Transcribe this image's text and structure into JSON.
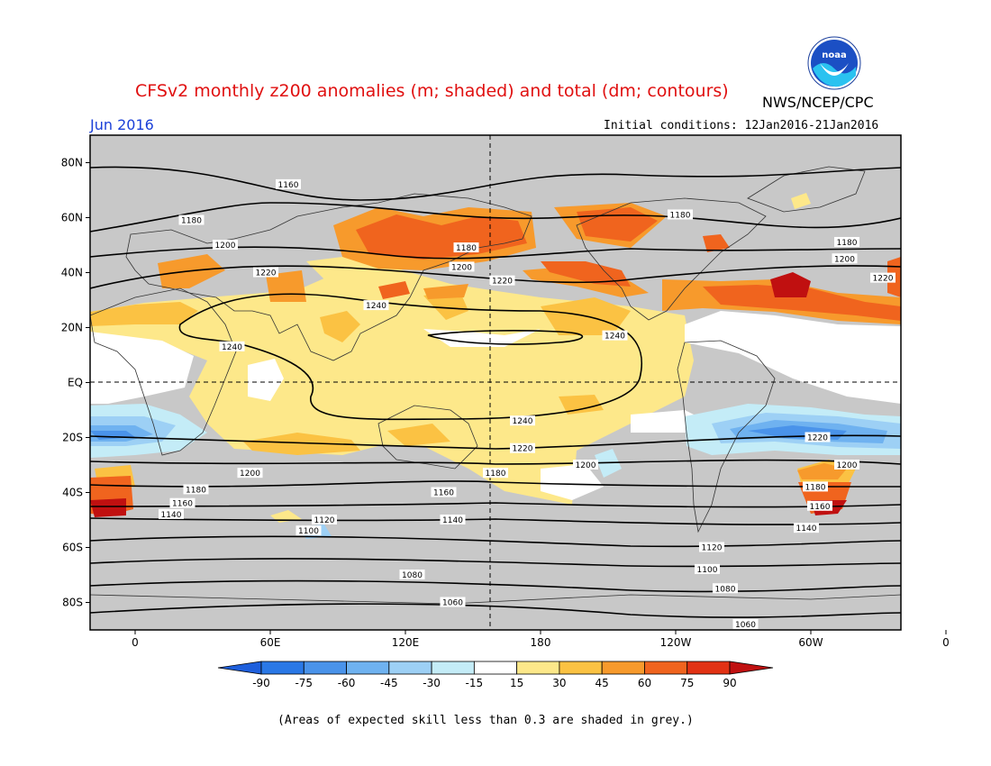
{
  "header": {
    "title": "CFSv2 monthly z200 anomalies (m; shaded) and total (dm; contours)",
    "agency": "NWS/NCEP/CPC",
    "month": "Jun 2016",
    "initial_conditions": "Initial conditions: 12Jan2016-21Jan2016",
    "logo_text": "noaa"
  },
  "footer": {
    "note": "(Areas of expected skill less than 0.3 are shaded in grey.)"
  },
  "axes": {
    "lat_labels": [
      "80N",
      "60N",
      "40N",
      "20N",
      "EQ",
      "20S",
      "40S",
      "60S",
      "80S"
    ],
    "lon_labels": [
      "0",
      "60E",
      "120E",
      "180",
      "120W",
      "60W",
      "0"
    ]
  },
  "colorbar": {
    "labels": [
      "-90",
      "-75",
      "-60",
      "-45",
      "-30",
      "-15",
      "15",
      "30",
      "45",
      "60",
      "75",
      "90"
    ],
    "colors": [
      "#1e5fdc",
      "#2a78e6",
      "#4a93ea",
      "#6fb2f0",
      "#9dd0f5",
      "#c4ecf7",
      "#ffffff",
      "#fde88a",
      "#fbc243",
      "#f79a2c",
      "#f0641e",
      "#e23214",
      "#c01010"
    ]
  },
  "contour_labels": [
    {
      "text": "1160",
      "lat": 72,
      "lon": 68
    },
    {
      "text": "1180",
      "lat": 61,
      "lon": -118
    },
    {
      "text": "1180",
      "lat": 59,
      "lon": 25
    },
    {
      "text": "1180",
      "lat": 49,
      "lon": 147
    },
    {
      "text": "1180",
      "lat": 51,
      "lon": -44
    },
    {
      "text": "1200",
      "lat": 50,
      "lon": 40
    },
    {
      "text": "1200",
      "lat": 42,
      "lon": 145
    },
    {
      "text": "1200",
      "lat": 45,
      "lon": -45
    },
    {
      "text": "1220",
      "lat": 40,
      "lon": 58
    },
    {
      "text": "1220",
      "lat": 37,
      "lon": 163
    },
    {
      "text": "1220",
      "lat": 38,
      "lon": -28
    },
    {
      "text": "1240",
      "lat": 28,
      "lon": 107
    },
    {
      "text": "1240",
      "lat": 13,
      "lon": 43
    },
    {
      "text": "1240",
      "lat": 17,
      "lon": -147
    },
    {
      "text": "1240",
      "lat": -14,
      "lon": 172
    },
    {
      "text": "1220",
      "lat": -24,
      "lon": 172
    },
    {
      "text": "1220",
      "lat": -20,
      "lon": -57
    },
    {
      "text": "1200",
      "lat": -30,
      "lon": -160
    },
    {
      "text": "1200",
      "lat": -33,
      "lon": 51
    },
    {
      "text": "1200",
      "lat": -30,
      "lon": -44
    },
    {
      "text": "1180",
      "lat": -33,
      "lon": 160
    },
    {
      "text": "1180",
      "lat": -39,
      "lon": 27
    },
    {
      "text": "1180",
      "lat": -38,
      "lon": -58
    },
    {
      "text": "1160",
      "lat": -40,
      "lon": 137
    },
    {
      "text": "1160",
      "lat": -44,
      "lon": 21
    },
    {
      "text": "1160",
      "lat": -45,
      "lon": -56
    },
    {
      "text": "1140",
      "lat": -48,
      "lon": 16
    },
    {
      "text": "1140",
      "lat": -50,
      "lon": 141
    },
    {
      "text": "1140",
      "lat": -53,
      "lon": -62
    },
    {
      "text": "1120",
      "lat": -50,
      "lon": 84
    },
    {
      "text": "1120",
      "lat": -60,
      "lon": -104
    },
    {
      "text": "1100",
      "lat": -54,
      "lon": 77
    },
    {
      "text": "1100",
      "lat": -68,
      "lon": -106
    },
    {
      "text": "1080",
      "lat": -70,
      "lon": 123
    },
    {
      "text": "1080",
      "lat": -75,
      "lon": -98
    },
    {
      "text": "1060",
      "lat": -80,
      "lon": 141
    },
    {
      "text": "1060",
      "lat": -88,
      "lon": -89
    }
  ]
}
